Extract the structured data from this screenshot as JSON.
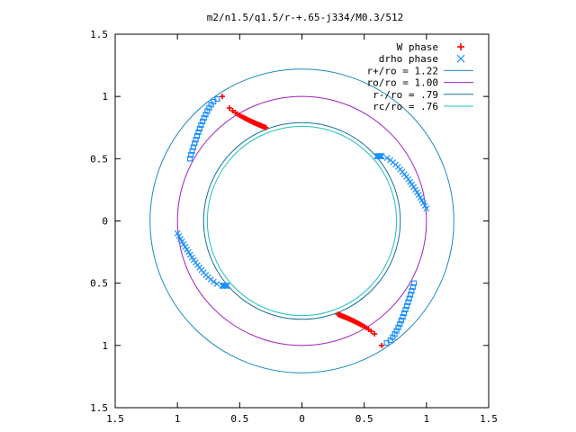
{
  "chart_data": {
    "type": "scatter",
    "title": "m2/n1.5/q1.5/r-+.65-j334/M0.3/512",
    "xlim": [
      -1.5,
      1.5
    ],
    "ylim": [
      -1.5,
      1.5
    ],
    "x_tick_labels": [
      "1.5",
      "1",
      "0.5",
      "0",
      "0.5",
      "1",
      "1.5"
    ],
    "y_tick_labels": [
      "1.5",
      "1",
      "0.5",
      "0",
      "0.5",
      "1",
      "1.5"
    ],
    "grid": false,
    "legend_position": "top-right",
    "series": [
      {
        "name": "W phase",
        "marker": "+",
        "color": "#ff0000",
        "arms": [
          {
            "center": [
              -0.64,
              1.0
            ],
            "tip": [
              -0.29,
              0.75
            ],
            "points": 28
          },
          {
            "center": [
              0.64,
              -1.0
            ],
            "tip": [
              0.29,
              -0.75
            ],
            "points": 28
          }
        ]
      },
      {
        "name": "drho phase",
        "marker": "x",
        "color": "#1e90ff",
        "arms": [
          {
            "center": [
              0.64,
              0.52
            ],
            "tip": [
              1.0,
              0.1
            ],
            "points": 22,
            "inner": [
              0.6,
              0.52
            ]
          },
          {
            "center": [
              -0.64,
              -0.52
            ],
            "tip": [
              -1.0,
              -0.1
            ],
            "points": 22,
            "inner": [
              -0.6,
              -0.52
            ]
          },
          {
            "center": [
              -0.68,
              0.98
            ],
            "tip": [
              -0.9,
              0.5
            ],
            "points": 18
          },
          {
            "center": [
              0.68,
              -0.98
            ],
            "tip": [
              0.9,
              -0.5
            ],
            "points": 18
          }
        ]
      },
      {
        "name": "r+/ro = 1.22",
        "type": "circle",
        "radius": 1.22,
        "color": "#1b88c4"
      },
      {
        "name": "ro/ro = 1.00",
        "type": "circle",
        "radius": 1.0,
        "color": "#a020c0"
      },
      {
        "name": "r-/ro = .79",
        "type": "circle",
        "radius": 0.79,
        "color": "#1b6fa0"
      },
      {
        "name": "rc/ro = .76",
        "type": "circle",
        "radius": 0.76,
        "color": "#20c0c0"
      }
    ]
  }
}
